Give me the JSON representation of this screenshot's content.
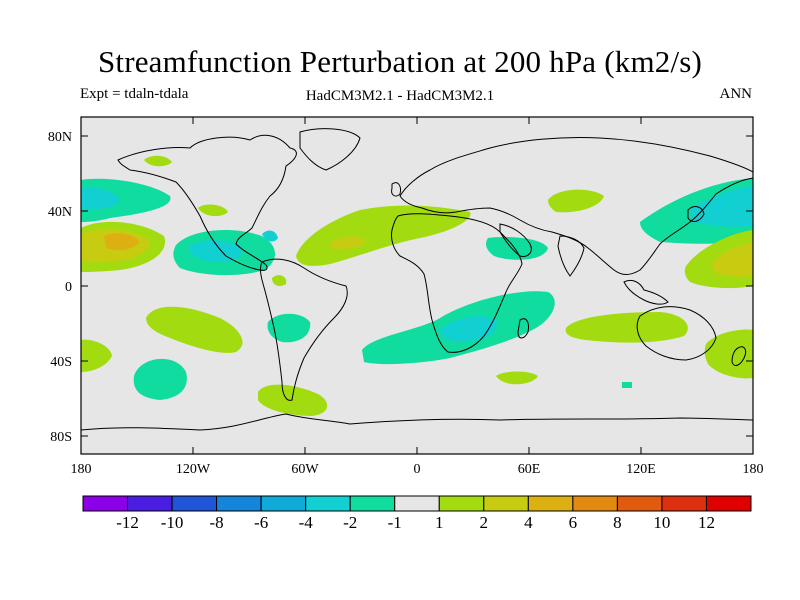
{
  "header": {
    "title": "Streamfunction Perturbation at 200 hPa (km2/s)",
    "left": "Expt = tdaln-tdala",
    "center": "HadCM3M2.1 - HadCM3M2.1",
    "right": "ANN"
  },
  "axes": {
    "lat_labels": [
      "80N",
      "40N",
      "0",
      "40S",
      "80S"
    ],
    "lon_labels": [
      "180",
      "120W",
      "60W",
      "0",
      "60E",
      "120E",
      "180"
    ]
  },
  "colorbar": {
    "labels": [
      "-12",
      "-10",
      "-8",
      "-6",
      "-4",
      "-2",
      "-1",
      "1",
      "2",
      "4",
      "6",
      "8",
      "10",
      "12"
    ],
    "colors": [
      "#8b00e8",
      "#4a1ee0",
      "#1f55d8",
      "#1585dc",
      "#10aad8",
      "#12cfd2",
      "#10dca0",
      "#e6e6e6",
      "#a2dc10",
      "#c8cc10",
      "#dcb010",
      "#e28a10",
      "#e05a10",
      "#dc3010",
      "#e00000"
    ]
  },
  "chart_data": {
    "type": "heatmap",
    "title": "Streamfunction Perturbation at 200 hPa (km2/s)",
    "units": "km2/s",
    "experiment": "tdaln-tdala",
    "models": "HadCM3M2.1 - HadCM3M2.1",
    "season": "ANN",
    "level_hPa": 200,
    "x_range_deg": [
      -180,
      180
    ],
    "y_range_deg": [
      -90,
      90
    ],
    "contour_levels": [
      -12,
      -10,
      -8,
      -6,
      -4,
      -2,
      -1,
      1,
      2,
      4,
      6,
      8,
      10,
      12
    ]
  }
}
